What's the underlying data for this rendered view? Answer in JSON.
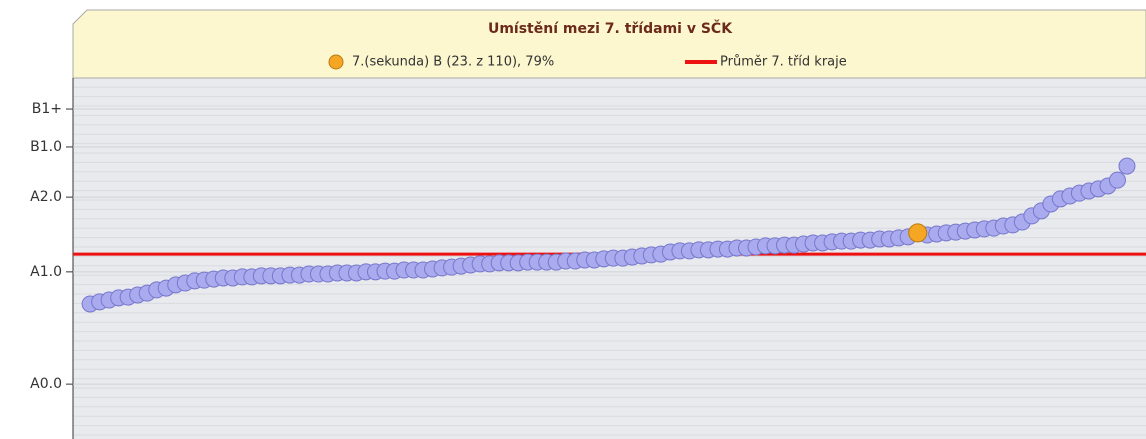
{
  "chart_data": {
    "type": "scatter",
    "title": "Umístění mezi 7. třídami v SČK",
    "xlim": [
      -0.8,
      112
    ],
    "ylim": [
      0,
      100
    ],
    "yticks": [
      {
        "value": 15.2,
        "label": "A0.0"
      },
      {
        "value": 46.3,
        "label": "A1.0"
      },
      {
        "value": 67.0,
        "label": "A2.0"
      },
      {
        "value": 80.9,
        "label": "B1.0"
      },
      {
        "value": 91.4,
        "label": "B1+"
      }
    ],
    "grid": true,
    "series": [
      {
        "color": "#aaaaee",
        "x": [
          1,
          2,
          3,
          4,
          5,
          6,
          7,
          8,
          9,
          10,
          11,
          12,
          13,
          14,
          15,
          16,
          17,
          18,
          19,
          20,
          21,
          22,
          23,
          24,
          25,
          26,
          27,
          28,
          29,
          30,
          31,
          32,
          33,
          34,
          35,
          36,
          37,
          38,
          39,
          40,
          41,
          42,
          43,
          44,
          45,
          46,
          47,
          48,
          49,
          50,
          51,
          52,
          53,
          54,
          55,
          56,
          57,
          58,
          59,
          60,
          61,
          62,
          63,
          64,
          65,
          66,
          67,
          68,
          69,
          70,
          71,
          72,
          73,
          74,
          75,
          76,
          77,
          78,
          79,
          80,
          81,
          82,
          83,
          84,
          85,
          86,
          87,
          89,
          90,
          91,
          92,
          93,
          94,
          95,
          96,
          97,
          98,
          99,
          100,
          101,
          102,
          103,
          104,
          105,
          106,
          107,
          108,
          109,
          110
        ],
        "values": [
          37.4,
          38.0,
          38.5,
          39.1,
          39.3,
          39.9,
          40.4,
          41.3,
          41.8,
          42.7,
          43.2,
          43.8,
          44.0,
          44.3,
          44.6,
          44.6,
          44.9,
          44.9,
          45.2,
          45.2,
          45.2,
          45.4,
          45.4,
          45.7,
          45.7,
          45.7,
          46.0,
          46.0,
          46.0,
          46.3,
          46.3,
          46.5,
          46.5,
          46.8,
          46.8,
          46.8,
          47.1,
          47.4,
          47.6,
          47.9,
          48.2,
          48.5,
          48.5,
          48.8,
          48.8,
          48.8,
          49.0,
          49.0,
          49.0,
          49.0,
          49.3,
          49.3,
          49.6,
          49.6,
          49.9,
          50.1,
          50.1,
          50.4,
          50.7,
          51.0,
          51.2,
          51.8,
          52.1,
          52.1,
          52.4,
          52.4,
          52.6,
          52.6,
          52.9,
          52.9,
          53.2,
          53.5,
          53.5,
          53.7,
          53.7,
          54.0,
          54.3,
          54.3,
          54.6,
          54.8,
          54.8,
          55.1,
          55.1,
          55.4,
          55.4,
          55.7,
          56.0,
          56.5,
          56.8,
          57.1,
          57.3,
          57.6,
          57.9,
          58.2,
          58.4,
          59.0,
          59.3,
          60.1,
          61.8,
          63.2,
          65.1,
          66.5,
          67.3,
          68.1,
          68.7,
          69.3,
          70.1,
          71.7,
          75.6
        ]
      },
      {
        "name": "7.(sekunda) B (23. z 110), 79%",
        "color": "#f5a623",
        "x": [
          88
        ],
        "values": [
          57.1
        ]
      }
    ],
    "reference_line": {
      "name": "Průměr 7. tříd kraje",
      "color": "#ee1111",
      "value": 51.2
    }
  }
}
